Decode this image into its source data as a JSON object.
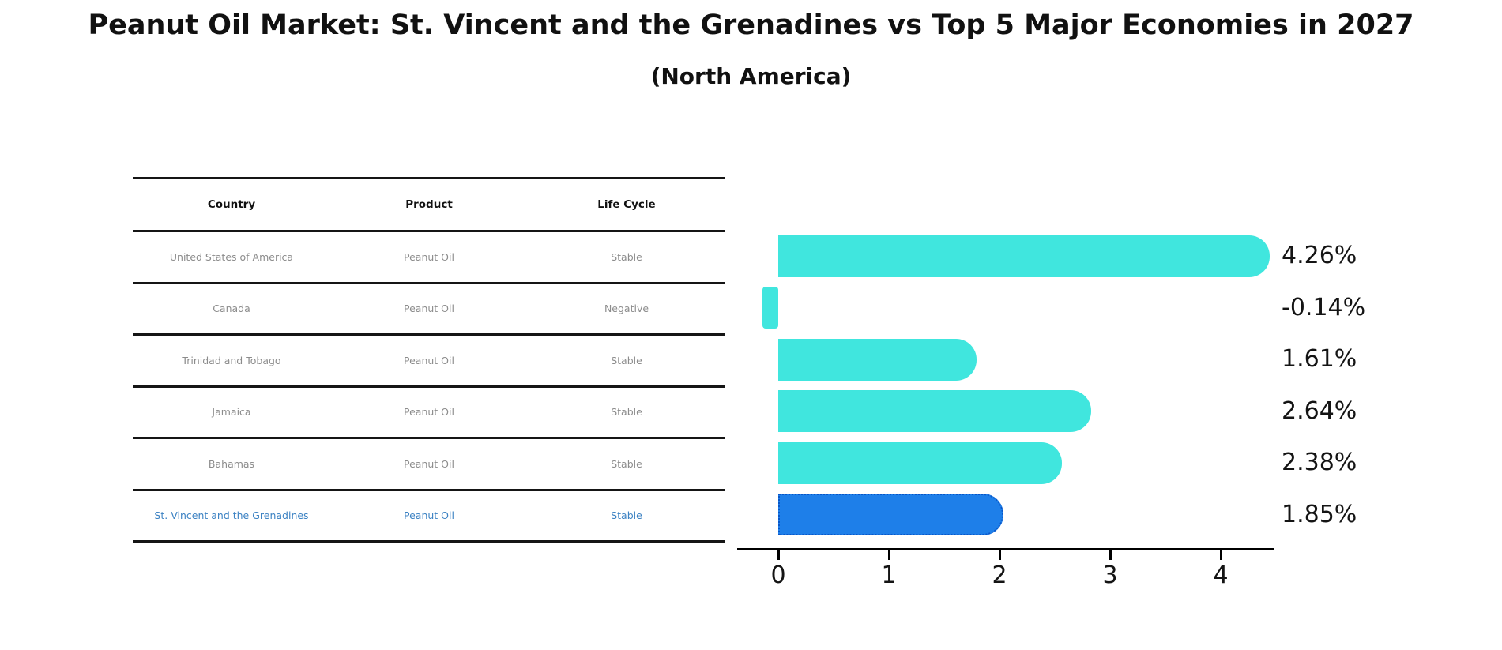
{
  "header": {
    "title": "Peanut Oil Market: St. Vincent and the Grenadines vs Top 5 Major Economies in 2027",
    "subtitle": "(North America)"
  },
  "table": {
    "columns": [
      "Country",
      "Product",
      "Life Cycle"
    ],
    "rows": [
      {
        "country": "United States of America",
        "product": "Peanut Oil",
        "life_cycle": "Stable",
        "highlight": false
      },
      {
        "country": "Canada",
        "product": "Peanut Oil",
        "life_cycle": "Negative",
        "highlight": false
      },
      {
        "country": "Trinidad and Tobago",
        "product": "Peanut Oil",
        "life_cycle": "Stable",
        "highlight": false
      },
      {
        "country": "Jamaica",
        "product": "Peanut Oil",
        "life_cycle": "Stable",
        "highlight": false
      },
      {
        "country": "Bahamas",
        "product": "Peanut Oil",
        "life_cycle": "Stable",
        "highlight": false
      },
      {
        "country": "St. Vincent and the Grenadines",
        "product": "Peanut Oil",
        "life_cycle": "Stable",
        "highlight": true
      }
    ]
  },
  "chart_data": {
    "type": "bar",
    "orientation": "horizontal",
    "title": "Peanut Oil Market: St. Vincent and the Grenadines vs Top 5 Major Economies in 2027",
    "subtitle": "(North America)",
    "categories": [
      "United States of America",
      "Canada",
      "Trinidad and Tobago",
      "Jamaica",
      "Bahamas",
      "St. Vincent and the Grenadines"
    ],
    "values": [
      4.26,
      -0.14,
      1.61,
      2.64,
      2.38,
      1.85
    ],
    "value_labels": [
      "4.26%",
      "-0.14%",
      "1.61%",
      "2.64%",
      "2.38%",
      "1.85%"
    ],
    "xticks": [
      0,
      1,
      2,
      3,
      4
    ],
    "xlim": [
      -0.38,
      4.5
    ],
    "grid": false,
    "legend": false,
    "highlight_index": 5,
    "bar_color": "#40E6DE",
    "highlight_bar_color": "#1E7FE9",
    "highlight_border_color": "#0956c8",
    "label_color": "#141414"
  },
  "colors": {
    "title_text": "#111111",
    "table_header_text": "#111111",
    "table_row_text": "#8c8c8c",
    "table_highlight_text": "#3c82c3",
    "axis": "#000000"
  }
}
